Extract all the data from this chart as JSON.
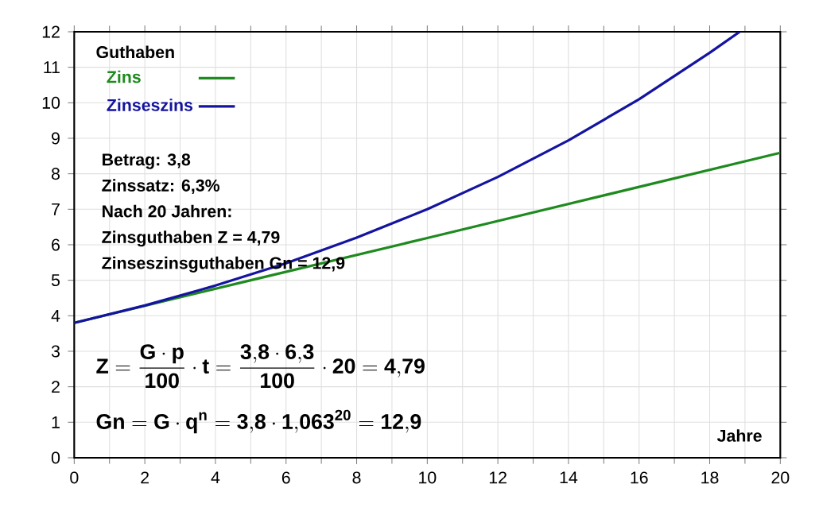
{
  "chart_data": {
    "type": "line",
    "xlabel": "Jahre",
    "ylabel": "Guthaben",
    "series": [
      {
        "name": "Zins",
        "color": "#1f8a1f",
        "x": [
          0,
          5,
          10,
          15,
          20
        ],
        "values": [
          3.8,
          5.0,
          6.19,
          7.39,
          8.59
        ]
      },
      {
        "name": "Zinseszins",
        "color": "#1414a0",
        "x": [
          0,
          2,
          4,
          6,
          8,
          10,
          12,
          14,
          16,
          18,
          18.85
        ],
        "values": [
          3.8,
          4.29,
          4.85,
          5.48,
          6.2,
          7.0,
          7.91,
          8.94,
          10.1,
          11.41,
          12
        ]
      }
    ],
    "xlim": [
      0,
      20
    ],
    "ylim": [
      0,
      12
    ],
    "xticks": [
      0,
      2,
      4,
      6,
      8,
      10,
      12,
      14,
      16,
      18,
      20
    ],
    "yticks": [
      0,
      1,
      2,
      3,
      4,
      5,
      6,
      7,
      8,
      9,
      10,
      11,
      12
    ],
    "grid": true,
    "legend": "top left",
    "marker": "none",
    "line_style": "solid",
    "annotations": [
      "Betrag: 3,8",
      "Zinssatz: 6,3%",
      "Nach 20 Jahren:",
      "Zinsguthaben Z = 4,79",
      "Zinseszinsguthaben Gn = 12,9",
      "\\mathbf{Z = \\frac{G\\cdot p}{100}\\cdot t = \\frac{3{,}8\\cdot 6{,}3}{100}\\cdot 20 = 4{,}79}",
      "\\mathbf{Gn = G\\cdot q^{n} = 3{,}8\\cdot 1{,}063^{20} = 12{,}9}"
    ]
  }
}
